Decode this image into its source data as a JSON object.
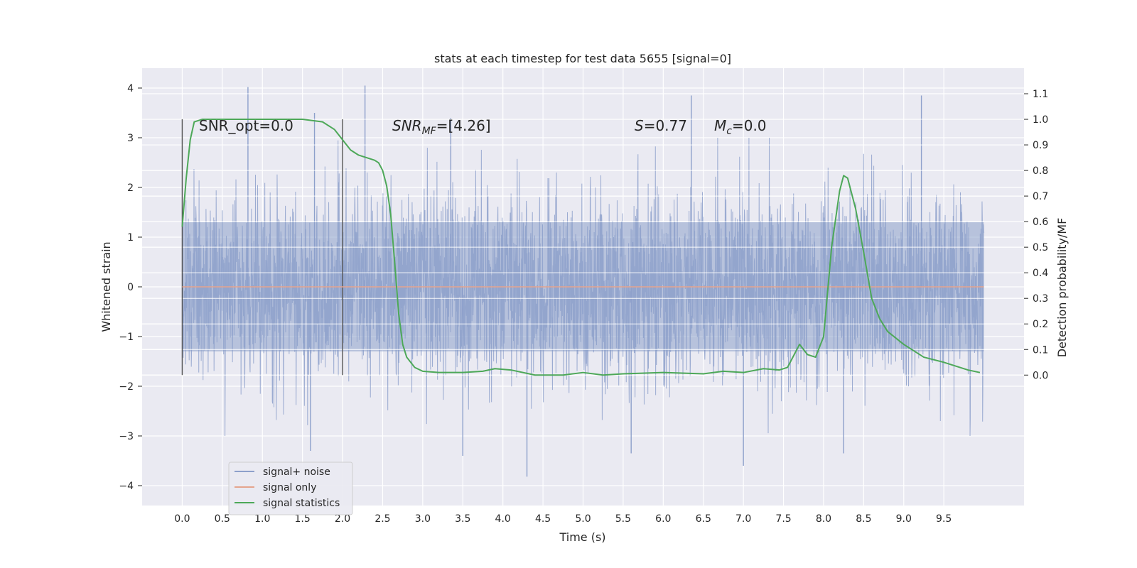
{
  "chart_data": {
    "type": "line",
    "title": "stats at each timestep for test data 5655 [signal=0]",
    "xlabel": "Time (s)",
    "ylabel_left": "Whitened strain",
    "ylabel_right": "Detection probability/MF",
    "xlim": [
      -0.5,
      10.5
    ],
    "ylim_left": [
      -4.4,
      4.4
    ],
    "ylim_right": [
      -0.51,
      1.2
    ],
    "xticks": [
      "0.0",
      "0.5",
      "1.0",
      "1.5",
      "2.0",
      "2.5",
      "3.0",
      "3.5",
      "4.0",
      "4.5",
      "5.0",
      "5.5",
      "6.0",
      "6.5",
      "7.0",
      "7.5",
      "8.0",
      "8.5",
      "9.0",
      "9.5"
    ],
    "yticks_left": [
      "−4",
      "−3",
      "−2",
      "−1",
      "0",
      "1",
      "2",
      "3",
      "4"
    ],
    "yticks_right": [
      "0.0",
      "0.1",
      "0.2",
      "0.3",
      "0.4",
      "0.5",
      "0.6",
      "0.7",
      "0.8",
      "0.9",
      "1.0",
      "1.1"
    ],
    "grid": true,
    "legend_position": "lower-left",
    "annotations": [
      {
        "text": "SNR_opt=0.0"
      },
      {
        "prefix": "SNR",
        "sub": "MF",
        "suffix": "=[4.26]"
      },
      {
        "prefix": "S",
        "suffix": "=0.77"
      },
      {
        "prefix": "M",
        "sub": "c",
        "suffix": "=0.0"
      }
    ],
    "window_markers_x": [
      0.0,
      2.0
    ],
    "series": [
      {
        "name": "signal+ noise",
        "color": "#8da0cb",
        "axis": "left",
        "description": "dense noise band",
        "x_range": [
          0.0,
          10.0
        ],
        "core_band": [
          -1.3,
          1.3
        ],
        "spikes": [
          {
            "x": 0.82,
            "y": 4.02
          },
          {
            "x": 2.28,
            "y": 4.05
          },
          {
            "x": 6.35,
            "y": 3.85
          },
          {
            "x": 9.22,
            "y": 3.85
          },
          {
            "x": 1.65,
            "y": 3.5
          },
          {
            "x": 3.35,
            "y": 3.4
          },
          {
            "x": 8.25,
            "y": -3.35
          },
          {
            "x": 4.3,
            "y": -3.82
          },
          {
            "x": 7.0,
            "y": -3.6
          },
          {
            "x": 1.6,
            "y": -3.3
          },
          {
            "x": 5.6,
            "y": -3.35
          },
          {
            "x": 3.5,
            "y": -3.4
          }
        ]
      },
      {
        "name": "signal only",
        "color": "#e5a48d",
        "axis": "left",
        "x": [
          0.0,
          10.0
        ],
        "y": [
          0.0,
          0.0
        ]
      },
      {
        "name": "signal statistics",
        "color": "#4da858",
        "axis": "right",
        "x": [
          0.0,
          0.05,
          0.1,
          0.15,
          0.25,
          0.5,
          1.0,
          1.5,
          1.75,
          1.9,
          2.0,
          2.1,
          2.2,
          2.3,
          2.4,
          2.45,
          2.5,
          2.55,
          2.6,
          2.65,
          2.7,
          2.75,
          2.8,
          2.9,
          3.0,
          3.2,
          3.5,
          3.75,
          3.9,
          4.1,
          4.4,
          4.75,
          5.0,
          5.25,
          5.5,
          6.0,
          6.5,
          6.75,
          7.0,
          7.25,
          7.45,
          7.55,
          7.7,
          7.8,
          7.9,
          8.0,
          8.1,
          8.2,
          8.25,
          8.3,
          8.4,
          8.5,
          8.6,
          8.7,
          8.8,
          9.0,
          9.25,
          9.5,
          9.8,
          9.95
        ],
        "y": [
          0.58,
          0.77,
          0.92,
          0.99,
          1.0,
          1.0,
          1.0,
          1.0,
          0.99,
          0.96,
          0.92,
          0.88,
          0.86,
          0.85,
          0.84,
          0.83,
          0.8,
          0.74,
          0.63,
          0.44,
          0.24,
          0.12,
          0.07,
          0.03,
          0.015,
          0.01,
          0.01,
          0.015,
          0.025,
          0.02,
          0.0,
          0.0,
          0.01,
          0.0,
          0.005,
          0.01,
          0.005,
          0.015,
          0.01,
          0.025,
          0.02,
          0.03,
          0.12,
          0.08,
          0.07,
          0.15,
          0.5,
          0.72,
          0.78,
          0.77,
          0.65,
          0.48,
          0.3,
          0.22,
          0.17,
          0.12,
          0.07,
          0.05,
          0.02,
          0.01
        ]
      }
    ]
  }
}
